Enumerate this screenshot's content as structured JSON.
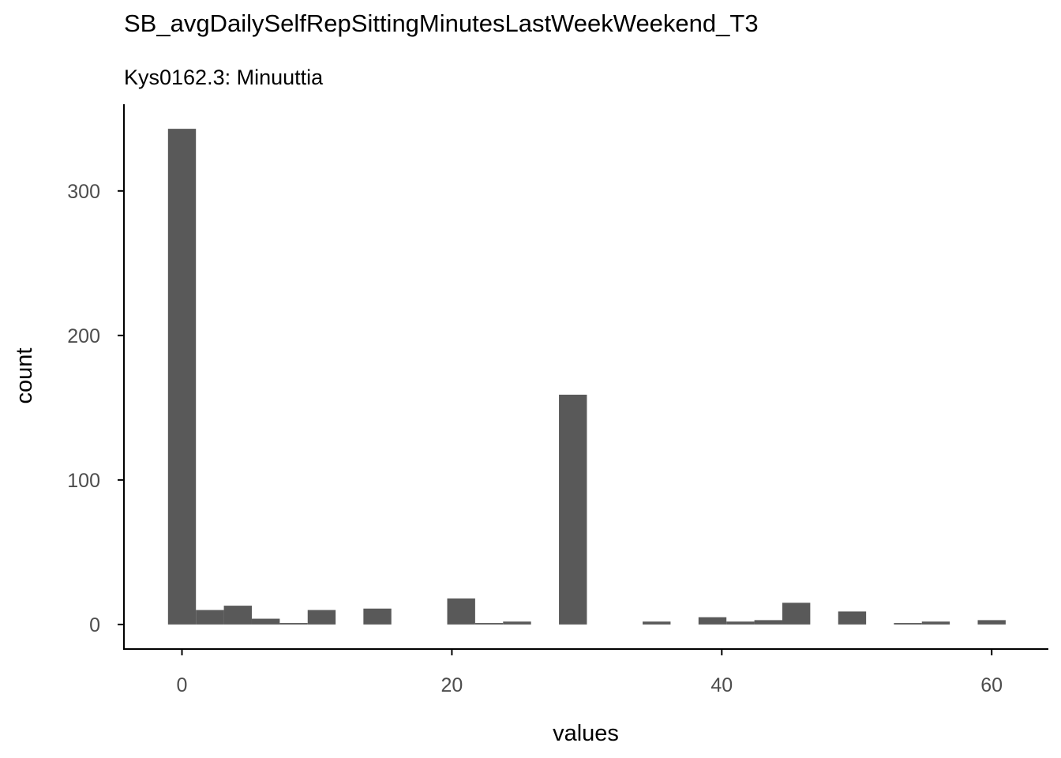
{
  "chart_data": {
    "type": "bar",
    "title": "SB_avgDailySelfRepSittingMinutesLastWeekWeekend_T3",
    "subtitle": "Kys0162.3: Minuuttia",
    "xlabel": "values",
    "ylabel": "count",
    "xlim": [
      -4.3,
      64.2
    ],
    "ylim": [
      -17,
      360
    ],
    "x_ticks": [
      0,
      20,
      40,
      60
    ],
    "y_ticks": [
      0,
      100,
      200,
      300
    ],
    "bin_width": 2.07,
    "bar_color": "#595959",
    "bins": [
      {
        "x": 0.0,
        "count": 343
      },
      {
        "x": 2.07,
        "count": 10
      },
      {
        "x": 4.14,
        "count": 13
      },
      {
        "x": 6.21,
        "count": 4
      },
      {
        "x": 8.28,
        "count": 1
      },
      {
        "x": 10.35,
        "count": 10
      },
      {
        "x": 14.48,
        "count": 11
      },
      {
        "x": 20.69,
        "count": 18
      },
      {
        "x": 22.76,
        "count": 1
      },
      {
        "x": 24.83,
        "count": 2
      },
      {
        "x": 28.97,
        "count": 159
      },
      {
        "x": 35.17,
        "count": 2
      },
      {
        "x": 39.31,
        "count": 5
      },
      {
        "x": 41.38,
        "count": 2
      },
      {
        "x": 43.45,
        "count": 3
      },
      {
        "x": 45.52,
        "count": 15
      },
      {
        "x": 49.66,
        "count": 9
      },
      {
        "x": 53.79,
        "count": 1
      },
      {
        "x": 55.86,
        "count": 2
      },
      {
        "x": 60.0,
        "count": 3
      }
    ]
  }
}
